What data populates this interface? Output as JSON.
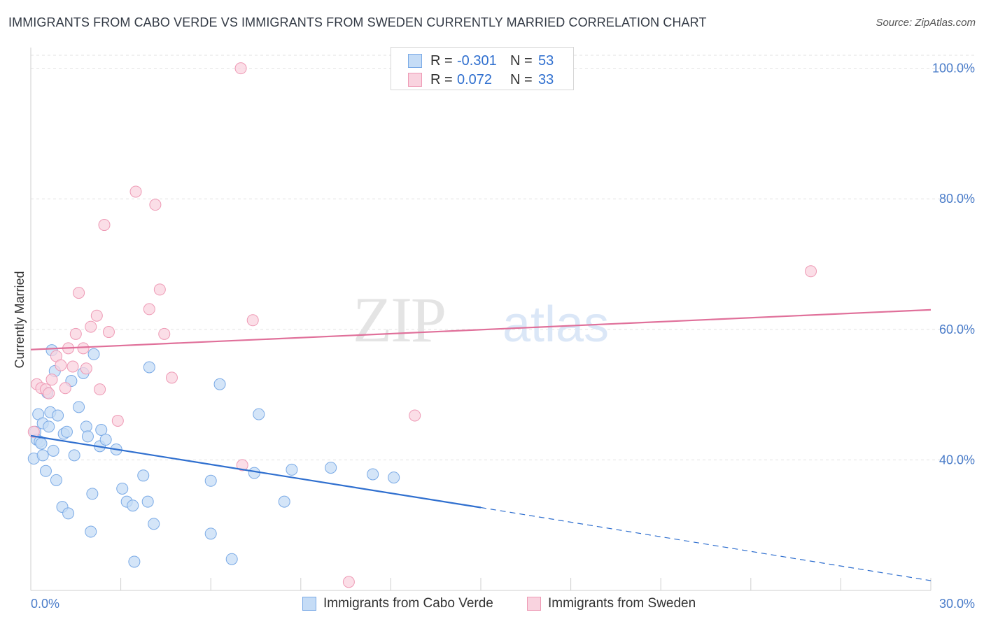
{
  "header": {
    "title": "IMMIGRANTS FROM CABO VERDE VS IMMIGRANTS FROM SWEDEN CURRENTLY MARRIED CORRELATION CHART",
    "source": "Source: ZipAtlas.com"
  },
  "watermark": {
    "zip": "ZIP",
    "atlas": "atlas"
  },
  "legend": {
    "rows": [
      {
        "r_label": "R =",
        "r_value": "-0.301",
        "n_label": "N =",
        "n_value": "53",
        "color": "#a8c8f0"
      },
      {
        "r_label": "R =",
        "r_value": "0.072",
        "n_label": "N =",
        "n_value": "33",
        "color": "#f5b8cb"
      }
    ]
  },
  "bottom_legend": {
    "items": [
      {
        "label": "Immigrants from Cabo Verde",
        "color": "#a8c8f0"
      },
      {
        "label": "Immigrants from Sweden",
        "color": "#f5b8cb"
      }
    ]
  },
  "chart_data": {
    "type": "scatter",
    "ylabel": "Currently Married",
    "xlabel": "",
    "x_tick_labels": [
      "0.0%",
      "30.0%"
    ],
    "y_tick_labels": [
      "40.0%",
      "60.0%",
      "80.0%",
      "100.0%"
    ],
    "xlim": [
      0,
      30
    ],
    "ylim": [
      20,
      102
    ],
    "y_ticks": [
      40,
      60,
      80,
      100
    ],
    "grid": true,
    "series": [
      {
        "name": "Immigrants from Cabo Verde",
        "color": "#7aaae6",
        "fill": "#c5dcf6",
        "line_color": "#2f6fcf",
        "trend": {
          "x0": 0,
          "y0": 43.7,
          "x1": 15,
          "y1": 32.7,
          "dashed_to_x": 30,
          "dashed_y": 21.5
        },
        "points": [
          [
            0.1,
            40.2
          ],
          [
            0.15,
            44.3
          ],
          [
            0.2,
            43.1
          ],
          [
            0.25,
            47.0
          ],
          [
            0.3,
            42.8
          ],
          [
            0.35,
            42.5
          ],
          [
            0.4,
            45.6
          ],
          [
            0.4,
            40.7
          ],
          [
            0.5,
            38.3
          ],
          [
            0.55,
            50.3
          ],
          [
            0.6,
            45.1
          ],
          [
            0.65,
            47.3
          ],
          [
            0.7,
            56.8
          ],
          [
            0.75,
            41.4
          ],
          [
            0.8,
            53.6
          ],
          [
            0.85,
            36.9
          ],
          [
            0.9,
            46.8
          ],
          [
            1.05,
            32.8
          ],
          [
            1.1,
            44.0
          ],
          [
            1.2,
            44.3
          ],
          [
            1.25,
            31.8
          ],
          [
            1.35,
            52.1
          ],
          [
            1.45,
            40.7
          ],
          [
            1.6,
            48.1
          ],
          [
            1.75,
            53.3
          ],
          [
            1.85,
            45.1
          ],
          [
            1.9,
            43.6
          ],
          [
            2.0,
            29.0
          ],
          [
            2.05,
            34.8
          ],
          [
            2.1,
            56.2
          ],
          [
            2.3,
            42.1
          ],
          [
            2.35,
            44.6
          ],
          [
            2.5,
            43.1
          ],
          [
            2.85,
            41.6
          ],
          [
            3.05,
            35.6
          ],
          [
            3.2,
            33.6
          ],
          [
            3.4,
            33.0
          ],
          [
            3.45,
            24.4
          ],
          [
            3.75,
            37.6
          ],
          [
            3.9,
            33.6
          ],
          [
            3.95,
            54.2
          ],
          [
            4.1,
            30.2
          ],
          [
            6.0,
            36.8
          ],
          [
            6.0,
            28.7
          ],
          [
            6.3,
            51.6
          ],
          [
            6.7,
            24.8
          ],
          [
            7.45,
            38.0
          ],
          [
            7.6,
            47.0
          ],
          [
            8.45,
            33.6
          ],
          [
            8.7,
            38.5
          ],
          [
            10.0,
            38.8
          ],
          [
            11.4,
            37.8
          ],
          [
            12.1,
            37.3
          ]
        ]
      },
      {
        "name": "Immigrants from Sweden",
        "color": "#ee9ab5",
        "fill": "#f9d3df",
        "line_color": "#e0709a",
        "trend": {
          "x0": 0,
          "y0": 56.9,
          "x1": 30,
          "y1": 63.0
        },
        "points": [
          [
            0.1,
            44.3
          ],
          [
            0.2,
            51.6
          ],
          [
            0.35,
            51.0
          ],
          [
            0.5,
            50.8
          ],
          [
            0.6,
            50.2
          ],
          [
            0.7,
            52.3
          ],
          [
            0.85,
            55.9
          ],
          [
            1.0,
            54.5
          ],
          [
            1.15,
            51.0
          ],
          [
            1.25,
            57.1
          ],
          [
            1.4,
            54.3
          ],
          [
            1.5,
            59.3
          ],
          [
            1.6,
            65.6
          ],
          [
            1.75,
            57.1
          ],
          [
            1.85,
            54.0
          ],
          [
            2.0,
            60.4
          ],
          [
            2.2,
            62.1
          ],
          [
            2.3,
            50.8
          ],
          [
            2.45,
            76.0
          ],
          [
            2.6,
            59.6
          ],
          [
            2.9,
            46.0
          ],
          [
            3.5,
            81.1
          ],
          [
            3.95,
            63.1
          ],
          [
            4.15,
            79.1
          ],
          [
            4.3,
            66.1
          ],
          [
            4.45,
            59.3
          ],
          [
            4.7,
            52.6
          ],
          [
            7.0,
            100.0
          ],
          [
            7.05,
            39.2
          ],
          [
            7.4,
            61.4
          ],
          [
            10.6,
            21.3
          ],
          [
            12.8,
            46.8
          ],
          [
            26.0,
            68.9
          ]
        ]
      }
    ]
  }
}
